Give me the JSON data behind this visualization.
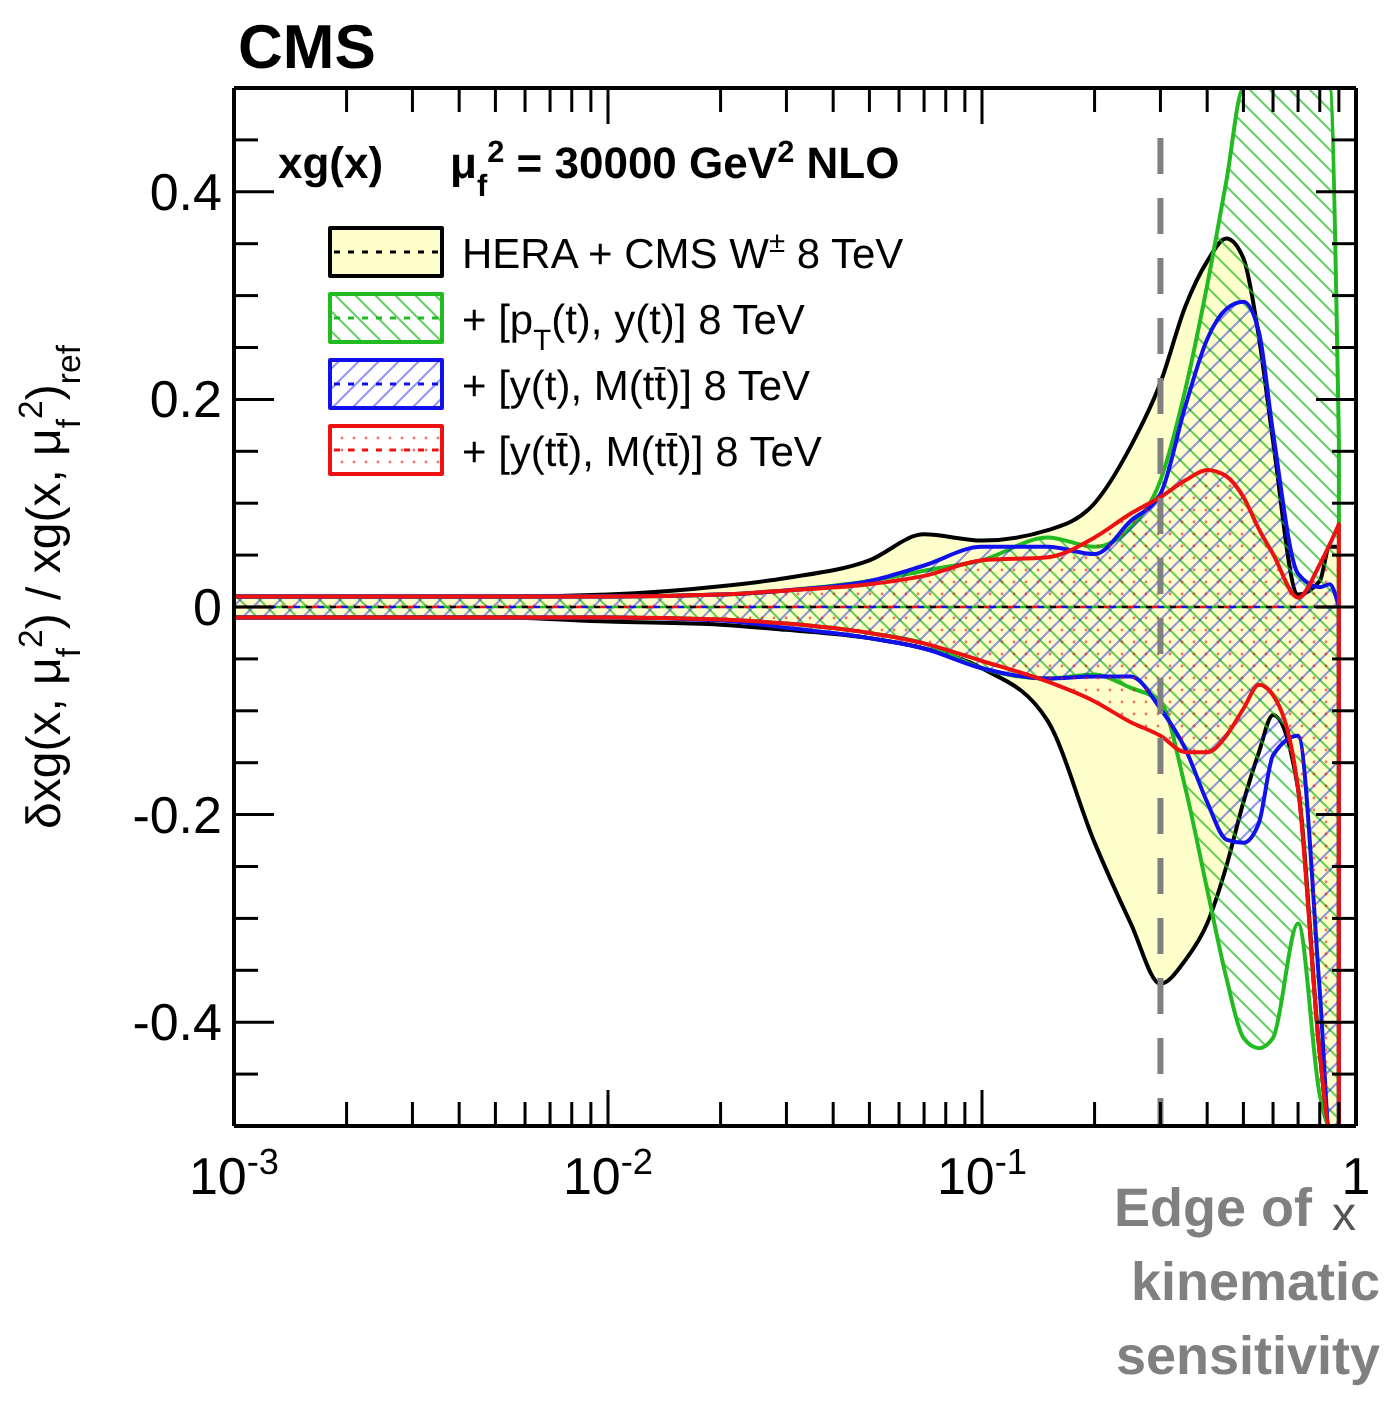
{
  "chart_data": {
    "type": "line",
    "line_style": "dashed",
    "title": "CMS",
    "xlabel": "x",
    "ylabel": "δxg(x, μ$_{f}$$^{2}$) / xg(x, μ$_{f}$$^{2}$)$_{ref}$",
    "annotations": [
      "xg(x)",
      "μ$_{f}$$^{2}$ = 30000 GeV$^{2}$  NLO"
    ],
    "log": "x",
    "xlim": [
      0.001,
      1
    ],
    "ylim": [
      -0.5,
      0.5
    ],
    "xticks": [
      {
        "value": 0.001,
        "label": "10$^{-3}$"
      },
      {
        "value": 0.002,
        "label": null
      },
      {
        "value": 0.003,
        "label": null
      },
      {
        "value": 0.004,
        "label": null
      },
      {
        "value": 0.005,
        "label": null
      },
      {
        "value": 0.006,
        "label": null
      },
      {
        "value": 0.007,
        "label": null
      },
      {
        "value": 0.008,
        "label": null
      },
      {
        "value": 0.009,
        "label": null
      },
      {
        "value": 0.01,
        "label": "10$^{-2}$"
      },
      {
        "value": 0.02,
        "label": null
      },
      {
        "value": 0.03,
        "label": null
      },
      {
        "value": 0.04,
        "label": null
      },
      {
        "value": 0.05,
        "label": null
      },
      {
        "value": 0.06,
        "label": null
      },
      {
        "value": 0.07,
        "label": null
      },
      {
        "value": 0.08,
        "label": null
      },
      {
        "value": 0.09,
        "label": null
      },
      {
        "value": 0.1,
        "label": "10$^{-1}$"
      },
      {
        "value": 0.2,
        "label": null
      },
      {
        "value": 0.3,
        "label": null
      },
      {
        "value": 0.4,
        "label": null
      },
      {
        "value": 0.5,
        "label": null
      },
      {
        "value": 0.6,
        "label": null
      },
      {
        "value": 0.7,
        "label": null
      },
      {
        "value": 0.8,
        "label": null
      },
      {
        "value": 0.9,
        "label": null
      },
      {
        "value": 1,
        "label": "1"
      }
    ],
    "yticks": [
      {
        "value": -0.45,
        "label": null
      },
      -0.4,
      {
        "value": -0.35,
        "label": null
      },
      {
        "value": -0.3,
        "label": null
      },
      {
        "value": -0.25,
        "label": null
      },
      -0.2,
      {
        "value": -0.15,
        "label": null
      },
      {
        "value": -0.1,
        "label": null
      },
      {
        "value": -0.05,
        "label": null
      },
      0,
      {
        "value": 0.05,
        "label": null
      },
      {
        "value": 0.1,
        "label": null
      },
      {
        "value": 0.15,
        "label": null
      },
      0.2,
      {
        "value": 0.25,
        "label": null
      },
      {
        "value": 0.3,
        "label": null
      },
      {
        "value": 0.35,
        "label": null
      },
      0.4,
      {
        "value": 0.45,
        "label": null
      }
    ],
    "legend": "top left",
    "grid": false,
    "x": [
      0.001,
      0.002,
      0.005,
      0.01,
      0.02,
      0.03,
      0.05,
      0.07,
      0.1,
      0.15,
      0.2,
      0.25,
      0.3,
      0.35,
      0.4,
      0.45,
      0.5,
      0.55,
      0.6,
      0.7,
      0.8,
      0.85,
      0.9
    ],
    "ref_lines": [
      {
        "axis": "x",
        "value": 0.3,
        "label": "Edge of kinematic sensitivity",
        "color": "#808080",
        "line_style": "dashed"
      }
    ],
    "series": [
      {
        "name": "HERA + CMS W$^{±}$ 8 TeV",
        "color": "#000000",
        "values": [
          0,
          0,
          0,
          0,
          0,
          0,
          0,
          0,
          0,
          0,
          0,
          0,
          0,
          0,
          0,
          0,
          0,
          0,
          0,
          0,
          0,
          0,
          0
        ],
        "upper": [
          0.01,
          0.01,
          0.01,
          0.012,
          0.02,
          0.028,
          0.045,
          0.07,
          0.064,
          0.074,
          0.1,
          0.155,
          0.216,
          0.29,
          0.333,
          0.355,
          0.336,
          0.26,
          0.16,
          0.012,
          0.025,
          0.058,
          0.058
        ],
        "lower": [
          -0.01,
          -0.01,
          -0.01,
          -0.014,
          -0.017,
          -0.022,
          -0.03,
          -0.04,
          -0.059,
          -0.11,
          -0.227,
          -0.305,
          -0.363,
          -0.34,
          -0.305,
          -0.25,
          -0.188,
          -0.14,
          -0.104,
          -0.175,
          -0.43,
          -0.5,
          -0.5
        ]
      },
      {
        "name": "+ [p$_{T}$(t), y(t)] 8 TeV",
        "color": "#22bb22",
        "values": [
          0,
          0,
          0,
          0,
          0,
          0,
          0,
          0,
          0,
          0,
          0,
          0,
          0,
          0,
          0,
          0,
          0,
          0,
          0,
          0,
          0,
          0,
          0
        ],
        "upper": [
          0.01,
          0.01,
          0.01,
          0.01,
          0.012,
          0.016,
          0.025,
          0.035,
          0.045,
          0.067,
          0.058,
          0.077,
          0.122,
          0.21,
          0.31,
          0.41,
          0.5,
          0.5,
          0.5,
          0.5,
          0.5,
          0.5,
          0.16
        ],
        "lower": [
          -0.01,
          -0.01,
          -0.01,
          -0.01,
          -0.012,
          -0.016,
          -0.025,
          -0.035,
          -0.059,
          -0.069,
          -0.065,
          -0.078,
          -0.091,
          -0.175,
          -0.272,
          -0.357,
          -0.415,
          -0.425,
          -0.415,
          -0.305,
          -0.47,
          -0.5,
          -0.5
        ]
      },
      {
        "name": "+ [y(t), M(tt̄)] 8 TeV",
        "color": "#1111ee",
        "values": [
          0,
          0,
          0,
          0,
          0,
          0,
          0,
          0,
          0,
          0,
          0,
          0,
          0,
          0,
          0,
          0,
          0,
          0,
          0,
          0,
          0,
          0,
          0
        ],
        "upper": [
          0.01,
          0.01,
          0.01,
          0.01,
          0.012,
          0.016,
          0.025,
          0.04,
          0.058,
          0.058,
          0.051,
          0.083,
          0.109,
          0.194,
          0.258,
          0.287,
          0.294,
          0.265,
          0.168,
          0.032,
          0.019,
          0.022,
          0
        ],
        "lower": [
          -0.01,
          -0.01,
          -0.01,
          -0.01,
          -0.013,
          -0.02,
          -0.03,
          -0.04,
          -0.059,
          -0.069,
          -0.067,
          -0.067,
          -0.098,
          -0.137,
          -0.188,
          -0.224,
          -0.227,
          -0.208,
          -0.143,
          -0.124,
          -0.37,
          -0.5,
          -0.5
        ]
      },
      {
        "name": "+ [y(tt̄), M(tt̄)] 8 TeV",
        "color": "#ee1111",
        "values": [
          0,
          0,
          0,
          0,
          0,
          0,
          0,
          0,
          0,
          0,
          0,
          0,
          0,
          0,
          0,
          0,
          0,
          0,
          0,
          0,
          0,
          0,
          0
        ],
        "upper": [
          0.01,
          0.01,
          0.01,
          0.01,
          0.012,
          0.016,
          0.022,
          0.03,
          0.045,
          0.048,
          0.067,
          0.09,
          0.106,
          0.122,
          0.132,
          0.126,
          0.106,
          0.075,
          0.051,
          0.009,
          0.041,
          0.06,
          0.08
        ],
        "lower": [
          -0.01,
          -0.01,
          -0.01,
          -0.01,
          -0.012,
          -0.016,
          -0.025,
          -0.035,
          -0.052,
          -0.072,
          -0.091,
          -0.111,
          -0.124,
          -0.14,
          -0.14,
          -0.124,
          -0.098,
          -0.075,
          -0.085,
          -0.175,
          -0.43,
          -0.5,
          -0.5
        ]
      }
    ]
  }
}
